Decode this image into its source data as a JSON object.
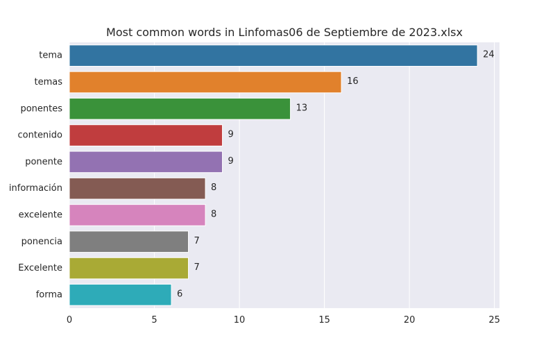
{
  "colors": {
    "plot_background": "#eaeaf2",
    "grid": "#ffffff",
    "text": "#262626",
    "bar_edge": "#ffffff"
  },
  "chart_data": {
    "type": "bar",
    "orientation": "horizontal",
    "title": "Most common words in Linfomas06 de Septiembre de 2023.xlsx",
    "xlabel": "",
    "ylabel": "",
    "categories": [
      "tema",
      "temas",
      "ponentes",
      "contenido",
      "ponente",
      "información",
      "excelente",
      "ponencia",
      "Excelente",
      "forma"
    ],
    "values": [
      24,
      16,
      13,
      9,
      9,
      8,
      8,
      7,
      7,
      6
    ],
    "data_labels": [
      "24",
      "16",
      "13",
      "9",
      "9",
      "8",
      "8",
      "7",
      "7",
      "6"
    ],
    "bar_colors": [
      "#3274a1",
      "#e1812c",
      "#3a923a",
      "#c03d3e",
      "#9372b2",
      "#845b53",
      "#d684bd",
      "#7f7f7f",
      "#a9aa35",
      "#2eabb8"
    ],
    "xlim": [
      0,
      25.3
    ],
    "xticks": [
      0,
      5,
      10,
      15,
      20,
      25
    ],
    "xtick_labels": [
      "0",
      "5",
      "10",
      "15",
      "20",
      "25"
    ],
    "grid": true,
    "legend": "none"
  }
}
